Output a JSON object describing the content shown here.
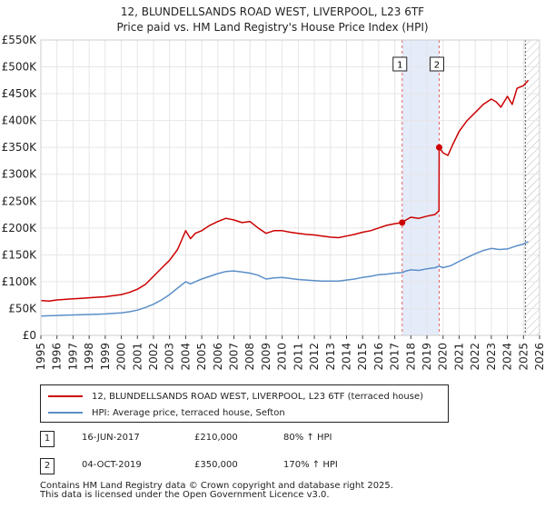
{
  "chart_data": {
    "type": "line",
    "title": "12, BLUNDELLSANDS ROAD WEST, LIVERPOOL, L23 6TF",
    "subtitle": "Price paid vs. HM Land Registry's House Price Index (HPI)",
    "xlabel": "",
    "ylabel": "",
    "xlim": [
      1995,
      2026
    ],
    "ylim": [
      0,
      550000
    ],
    "x_ticks": [
      "1995",
      "1996",
      "1997",
      "1998",
      "1999",
      "2000",
      "2001",
      "2002",
      "2003",
      "2004",
      "2005",
      "2006",
      "2007",
      "2008",
      "2009",
      "2010",
      "2011",
      "2012",
      "2013",
      "2014",
      "2015",
      "2016",
      "2017",
      "2018",
      "2019",
      "2020",
      "2021",
      "2022",
      "2023",
      "2024",
      "2025",
      "2026"
    ],
    "y_ticks": [
      {
        "value": 0,
        "label": "£0"
      },
      {
        "value": 50000,
        "label": "£50K"
      },
      {
        "value": 100000,
        "label": "£100K"
      },
      {
        "value": 150000,
        "label": "£150K"
      },
      {
        "value": 200000,
        "label": "£200K"
      },
      {
        "value": 250000,
        "label": "£250K"
      },
      {
        "value": 300000,
        "label": "£300K"
      },
      {
        "value": 350000,
        "label": "£350K"
      },
      {
        "value": 400000,
        "label": "£400K"
      },
      {
        "value": 450000,
        "label": "£450K"
      },
      {
        "value": 500000,
        "label": "£500K"
      },
      {
        "value": 550000,
        "label": "£550K"
      }
    ],
    "series": [
      {
        "name": "12, BLUNDELLSANDS ROAD WEST, LIVERPOOL, L23 6TF (terraced house)",
        "color": "#cc0000",
        "x": [
          1995.0,
          1995.5,
          1996.0,
          1996.5,
          1997.0,
          1997.5,
          1998.0,
          1998.5,
          1999.0,
          1999.5,
          2000.0,
          2000.5,
          2001.0,
          2001.5,
          2002.0,
          2002.5,
          2003.0,
          2003.5,
          2004.0,
          2004.3,
          2004.6,
          2005.0,
          2005.5,
          2006.0,
          2006.5,
          2007.0,
          2007.5,
          2008.0,
          2008.5,
          2009.0,
          2009.5,
          2010.0,
          2010.5,
          2011.0,
          2011.5,
          2012.0,
          2012.5,
          2013.0,
          2013.5,
          2014.0,
          2014.5,
          2015.0,
          2015.5,
          2016.0,
          2016.5,
          2017.0,
          2017.46,
          2017.7,
          2018.0,
          2018.5,
          2019.0,
          2019.5,
          2019.75,
          2019.76,
          2020.0,
          2020.3,
          2020.6,
          2021.0,
          2021.5,
          2022.0,
          2022.5,
          2023.0,
          2023.3,
          2023.6,
          2024.0,
          2024.3,
          2024.6,
          2025.0,
          2025.3
        ],
        "values": [
          65000,
          64000,
          66000,
          67000,
          68000,
          69000,
          70000,
          71000,
          72000,
          74000,
          76000,
          80000,
          86000,
          95000,
          110000,
          125000,
          140000,
          160000,
          195000,
          180000,
          190000,
          195000,
          205000,
          212000,
          218000,
          215000,
          210000,
          212000,
          200000,
          190000,
          195000,
          195000,
          192000,
          190000,
          188000,
          187000,
          185000,
          183000,
          182000,
          185000,
          188000,
          192000,
          195000,
          200000,
          205000,
          208000,
          210000,
          215000,
          220000,
          218000,
          222000,
          225000,
          232000,
          350000,
          340000,
          335000,
          355000,
          380000,
          400000,
          415000,
          430000,
          440000,
          435000,
          425000,
          445000,
          430000,
          460000,
          465000,
          475000
        ]
      },
      {
        "name": "HPI: Average price, terraced house, Sefton",
        "color": "#5b8fc9",
        "x": [
          1995.0,
          1995.5,
          1996.0,
          1996.5,
          1997.0,
          1997.5,
          1998.0,
          1998.5,
          1999.0,
          1999.5,
          2000.0,
          2000.5,
          2001.0,
          2001.5,
          2002.0,
          2002.5,
          2003.0,
          2003.5,
          2004.0,
          2004.3,
          2004.6,
          2005.0,
          2005.5,
          2006.0,
          2006.5,
          2007.0,
          2007.5,
          2008.0,
          2008.5,
          2009.0,
          2009.5,
          2010.0,
          2010.5,
          2011.0,
          2011.5,
          2012.0,
          2012.5,
          2013.0,
          2013.5,
          2014.0,
          2014.5,
          2015.0,
          2015.5,
          2016.0,
          2016.5,
          2017.0,
          2017.46,
          2017.7,
          2018.0,
          2018.5,
          2019.0,
          2019.5,
          2019.75,
          2020.0,
          2020.5,
          2021.0,
          2021.5,
          2022.0,
          2022.5,
          2023.0,
          2023.5,
          2024.0,
          2024.5,
          2025.0,
          2025.3
        ],
        "values": [
          36000,
          36500,
          37000,
          37500,
          38000,
          38500,
          39000,
          39500,
          40000,
          41000,
          42000,
          44000,
          47000,
          52000,
          58000,
          66000,
          76000,
          88000,
          100000,
          96000,
          100000,
          105000,
          110000,
          115000,
          119000,
          120000,
          118000,
          116000,
          112000,
          105000,
          107000,
          108000,
          106000,
          104000,
          103000,
          102000,
          101000,
          101000,
          101000,
          103000,
          105000,
          108000,
          110000,
          113000,
          114000,
          116000,
          117000,
          120000,
          122000,
          121000,
          124000,
          126000,
          129000,
          126000,
          130000,
          138000,
          145000,
          152000,
          158000,
          162000,
          160000,
          161000,
          166000,
          170000,
          175000
        ]
      }
    ],
    "markers": [
      {
        "label": "1",
        "x": 2017.46,
        "y": 210000,
        "series": 0
      },
      {
        "label": "2",
        "x": 2019.76,
        "y": 350000,
        "series": 0
      }
    ],
    "shaded_range": [
      2017.46,
      2019.76
    ],
    "hatched_from": 2025.0
  },
  "legend": {
    "property_label": "12, BLUNDELLSANDS ROAD WEST, LIVERPOOL, L23 6TF (terraced house)",
    "hpi_label": "HPI: Average price, terraced house, Sefton",
    "property_color": "#cc0000",
    "hpi_color": "#5b8fc9"
  },
  "annotations": [
    {
      "num": "1",
      "date": "16-JUN-2017",
      "price": "£210,000",
      "hpi": "80% ↑ HPI"
    },
    {
      "num": "2",
      "date": "04-OCT-2019",
      "price": "£350,000",
      "hpi": "170% ↑ HPI"
    }
  ],
  "footer": {
    "line1": "Contains HM Land Registry data © Crown copyright and database right 2025.",
    "line2": "This data is licensed under the Open Government Licence v3.0."
  }
}
